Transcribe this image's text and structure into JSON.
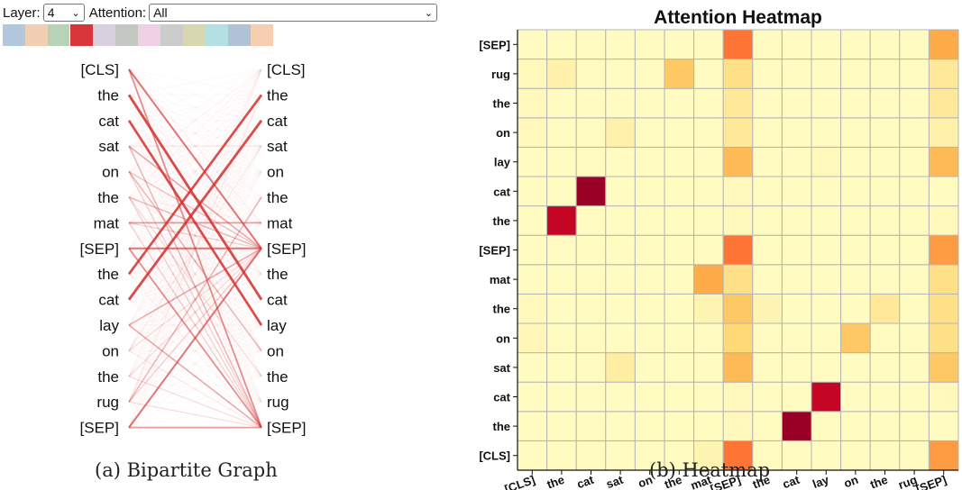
{
  "controls": {
    "layer_label": "Layer:",
    "layer_value": "4",
    "attention_label": "Attention:",
    "attention_value": "All"
  },
  "head_swatches": [
    "#b3c8dc",
    "#f0cfb4",
    "#b6d3b8",
    "#d9363b",
    "#d8d0de",
    "#c3c8c3",
    "#f0d0e4",
    "#cbcbcb",
    "#d8d8b0",
    "#b3e0e2",
    "#afc2d6",
    "#f6cfb3"
  ],
  "bipartite": {
    "tokens": [
      "[CLS]",
      "the",
      "cat",
      "sat",
      "on",
      "the",
      "mat",
      "[SEP]",
      "the",
      "cat",
      "lay",
      "on",
      "the",
      "rug",
      "[SEP]"
    ],
    "edge_color": "#d32f2f"
  },
  "chart_data": {
    "type": "heatmap",
    "title": "Attention Heatmap",
    "x_labels": [
      "[CLS]",
      "the",
      "cat",
      "sat",
      "on",
      "the",
      "mat",
      "[SEP]",
      "the",
      "cat",
      "lay",
      "on",
      "the",
      "rug",
      "[SEP]"
    ],
    "y_labels": [
      "[CLS]",
      "the",
      "cat",
      "sat",
      "on",
      "the",
      "mat",
      "[SEP]",
      "the",
      "cat",
      "lay",
      "on",
      "the",
      "rug",
      "[SEP]"
    ],
    "matrix": [
      [
        0.03,
        0.03,
        0.03,
        0.03,
        0.03,
        0.03,
        0.07,
        0.55,
        0.03,
        0.03,
        0.03,
        0.03,
        0.03,
        0.03,
        0.45
      ],
      [
        0.03,
        0.03,
        0.03,
        0.03,
        0.03,
        0.03,
        0.03,
        0.05,
        0.03,
        0.95,
        0.03,
        0.03,
        0.03,
        0.03,
        0.03
      ],
      [
        0.03,
        0.03,
        0.03,
        0.03,
        0.03,
        0.03,
        0.03,
        0.05,
        0.03,
        0.03,
        0.85,
        0.03,
        0.03,
        0.03,
        0.05
      ],
      [
        0.03,
        0.03,
        0.03,
        0.12,
        0.03,
        0.03,
        0.03,
        0.35,
        0.03,
        0.03,
        0.03,
        0.03,
        0.03,
        0.03,
        0.3
      ],
      [
        0.06,
        0.03,
        0.03,
        0.03,
        0.03,
        0.03,
        0.03,
        0.25,
        0.03,
        0.03,
        0.03,
        0.3,
        0.03,
        0.03,
        0.2
      ],
      [
        0.05,
        0.03,
        0.03,
        0.03,
        0.03,
        0.03,
        0.07,
        0.3,
        0.07,
        0.03,
        0.03,
        0.03,
        0.15,
        0.03,
        0.2
      ],
      [
        0.03,
        0.03,
        0.03,
        0.03,
        0.03,
        0.03,
        0.4,
        0.2,
        0.03,
        0.03,
        0.03,
        0.03,
        0.03,
        0.03,
        0.2
      ],
      [
        0.03,
        0.03,
        0.03,
        0.03,
        0.03,
        0.03,
        0.03,
        0.55,
        0.03,
        0.03,
        0.03,
        0.03,
        0.03,
        0.03,
        0.45
      ],
      [
        0.03,
        0.85,
        0.03,
        0.03,
        0.03,
        0.03,
        0.03,
        0.05,
        0.03,
        0.03,
        0.03,
        0.03,
        0.03,
        0.03,
        0.05
      ],
      [
        0.03,
        0.03,
        0.95,
        0.03,
        0.03,
        0.03,
        0.03,
        0.05,
        0.03,
        0.03,
        0.03,
        0.03,
        0.03,
        0.03,
        0.03
      ],
      [
        0.03,
        0.03,
        0.03,
        0.03,
        0.03,
        0.03,
        0.03,
        0.35,
        0.03,
        0.03,
        0.05,
        0.03,
        0.03,
        0.03,
        0.35
      ],
      [
        0.05,
        0.03,
        0.03,
        0.1,
        0.03,
        0.03,
        0.03,
        0.15,
        0.03,
        0.03,
        0.03,
        0.03,
        0.03,
        0.03,
        0.1
      ],
      [
        0.05,
        0.03,
        0.03,
        0.03,
        0.03,
        0.03,
        0.03,
        0.15,
        0.03,
        0.03,
        0.03,
        0.03,
        0.03,
        0.03,
        0.15
      ],
      [
        0.05,
        0.1,
        0.03,
        0.03,
        0.03,
        0.3,
        0.03,
        0.2,
        0.03,
        0.03,
        0.03,
        0.03,
        0.03,
        0.03,
        0.15
      ],
      [
        0.03,
        0.03,
        0.03,
        0.03,
        0.03,
        0.03,
        0.03,
        0.55,
        0.03,
        0.03,
        0.03,
        0.03,
        0.03,
        0.03,
        0.4
      ]
    ],
    "color_scale": [
      "#ffffcc",
      "#ffeda0",
      "#fed976",
      "#feb24c",
      "#fd8d3c",
      "#fc4e2a",
      "#e31a1c",
      "#bd0026",
      "#800026"
    ],
    "grid": true
  },
  "captions": {
    "a": "(a) Bipartite Graph",
    "b": "(b) Heatmap"
  }
}
